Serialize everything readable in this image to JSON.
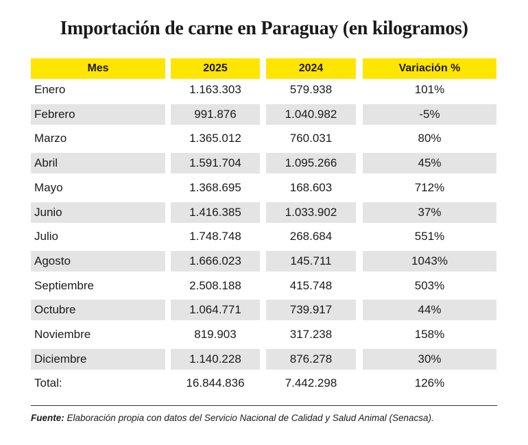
{
  "header": {
    "title": "Importación de carne en Paraguay  (en kilogramos)"
  },
  "table": {
    "columns": [
      "Mes",
      "2025",
      "2024",
      "Variación %"
    ],
    "rows": [
      [
        "Enero",
        "1.163.303",
        "579.938",
        "101%"
      ],
      [
        "Febrero",
        "991.876",
        "1.040.982",
        "-5%"
      ],
      [
        "Marzo",
        "1.365.012",
        "760.031",
        "80%"
      ],
      [
        "Abril",
        "1.591.704",
        "1.095.266",
        "45%"
      ],
      [
        "Mayo",
        "1.368.695",
        "168.603",
        "712%"
      ],
      [
        "Junio",
        "1.416.385",
        "1.033.902",
        "37%"
      ],
      [
        "Julio",
        "1.748.748",
        "268.684",
        "551%"
      ],
      [
        "Agosto",
        "1.666.023",
        "145.711",
        "1043%"
      ],
      [
        "Septiembre",
        "2.508.188",
        "415.748",
        "503%"
      ],
      [
        "Octubre",
        "1.064.771",
        "739.917",
        "44%"
      ],
      [
        "Noviembre",
        "819.903",
        "317.238",
        "158%"
      ],
      [
        "Diciembre",
        "1.140.228",
        "876.278",
        "30%"
      ]
    ],
    "total": [
      "Total:",
      "16.844.836",
      "7.442.298",
      "126%"
    ]
  },
  "footnote": {
    "label": "Fuente:",
    "text": "Elaboración propia con datos del Servicio Nacional de Calidad y Salud Animal (Senacsa)."
  }
}
